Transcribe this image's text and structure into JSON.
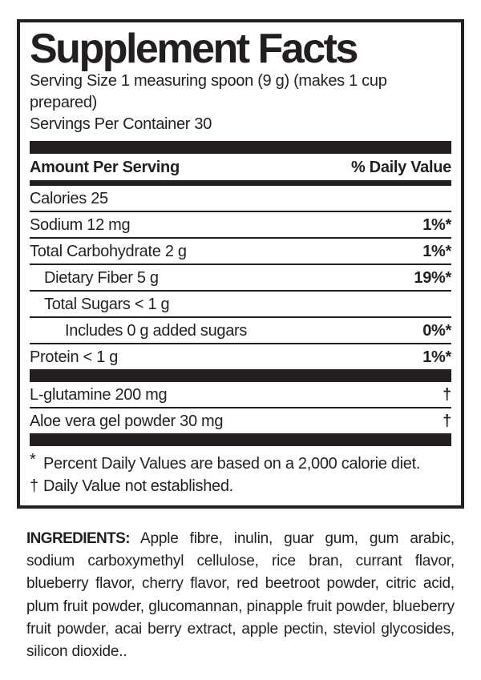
{
  "colors": {
    "ink": "#231f20",
    "background": "#ffffff"
  },
  "facts": {
    "title": "Supplement Facts",
    "serving_size": "Serving Size 1 measuring spoon (9 g) (makes 1 cup prepared)",
    "servings_per_container": "Servings Per Container 30",
    "columns": {
      "amount": "Amount Per Serving",
      "daily_value": "% Daily Value"
    },
    "rows": [
      {
        "name": "Calories 25",
        "value": "",
        "indent": 0
      },
      {
        "name": "Sodium 12 mg",
        "value": "1%*",
        "indent": 0
      },
      {
        "name": "Total Carbohydrate 2 g",
        "value": "1%*",
        "indent": 0
      },
      {
        "name": "Dietary Fiber 5 g",
        "value": "19%*",
        "indent": 1
      },
      {
        "name": "Total Sugars < 1 g",
        "value": "",
        "indent": 1
      },
      {
        "name": "Includes 0 g added sugars",
        "value": "0%*",
        "indent": 2
      },
      {
        "name": "Protein < 1 g",
        "value": "1%*",
        "indent": 0
      }
    ],
    "other_rows": [
      {
        "name": "L-glutamine 200 mg",
        "value": "†"
      },
      {
        "name": "Aloe vera gel powder 30 mg",
        "value": "†"
      }
    ],
    "footnotes": [
      {
        "symbol": "*",
        "text": "Percent Daily Values are based on a 2,000 calorie diet."
      },
      {
        "symbol": "†",
        "text": "Daily Value not established."
      }
    ]
  },
  "ingredients": {
    "label": "INGREDIENTS:",
    "text": "Apple fibre, inulin, guar gum, gum arabic, sodium carboxymethyl cellulose, rice bran, currant flavor, blueberry flavor, cherry flavor, red beetroot powder, citric acid, plum fruit powder, glucomannan, pinapple fruit powder, blueberry fruit powder, acai berry extract, apple pectin, steviol glycosides, silicon dioxide.."
  }
}
